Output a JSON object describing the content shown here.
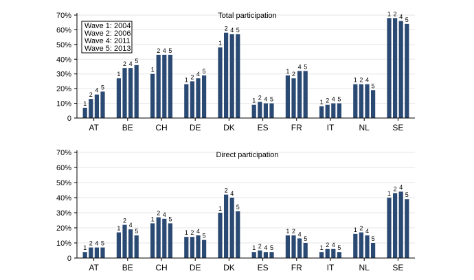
{
  "chart_data": [
    {
      "type": "bar",
      "title": "Total participation",
      "xlabel": "",
      "ylabel": "",
      "ylim": [
        0,
        70
      ],
      "yticks": [
        "0",
        "10%",
        "20%",
        "30%",
        "40%",
        "50%",
        "60%",
        "70%"
      ],
      "categories": [
        "AT",
        "BE",
        "CH",
        "DE",
        "DK",
        "ES",
        "FR",
        "IT",
        "NL",
        "SE"
      ],
      "wave_labels": [
        "1",
        "2",
        "4",
        "5"
      ],
      "legend": {
        "placement": "top-left",
        "entries": [
          "Wave 1: 2004",
          "Wave 2: 2006",
          "Wave 4: 2011",
          "Wave 5: 2013"
        ]
      },
      "series": [
        {
          "name": "Wave 1: 2004",
          "values": [
            7,
            27,
            30,
            23,
            48,
            9,
            29,
            8,
            23,
            68
          ]
        },
        {
          "name": "Wave 2: 2006",
          "values": [
            13,
            34,
            43,
            25,
            58,
            11,
            27,
            9,
            23,
            68
          ]
        },
        {
          "name": "Wave 4: 2011",
          "values": [
            16,
            34,
            43,
            27,
            57,
            10,
            32,
            10,
            23,
            66
          ]
        },
        {
          "name": "Wave 5: 2013",
          "values": [
            18,
            36,
            43,
            29,
            57,
            10,
            32,
            10,
            19,
            64
          ]
        }
      ],
      "bar_color": "#2b4a73"
    },
    {
      "type": "bar",
      "title": "Direct participation",
      "xlabel": "",
      "ylabel": "",
      "ylim": [
        0,
        70
      ],
      "yticks": [
        "0",
        "10%",
        "20%",
        "30%",
        "40%",
        "50%",
        "60%",
        "70%"
      ],
      "categories": [
        "AT",
        "BE",
        "CH",
        "DE",
        "DK",
        "ES",
        "FR",
        "IT",
        "NL",
        "SE"
      ],
      "wave_labels": [
        "1",
        "2",
        "4",
        "5"
      ],
      "series": [
        {
          "name": "Wave 1: 2004",
          "values": [
            4,
            17,
            23,
            14,
            30,
            4,
            15,
            4,
            16,
            40
          ]
        },
        {
          "name": "Wave 2: 2006",
          "values": [
            7,
            22,
            27,
            14,
            42,
            5,
            15,
            6,
            17,
            43
          ]
        },
        {
          "name": "Wave 4: 2011",
          "values": [
            7,
            19,
            26,
            15,
            40,
            4,
            13,
            6,
            15,
            44
          ]
        },
        {
          "name": "Wave 5: 2013",
          "values": [
            7,
            15,
            23,
            12,
            31,
            4,
            10,
            4,
            10,
            39
          ]
        }
      ],
      "bar_color": "#2b4a73"
    }
  ]
}
